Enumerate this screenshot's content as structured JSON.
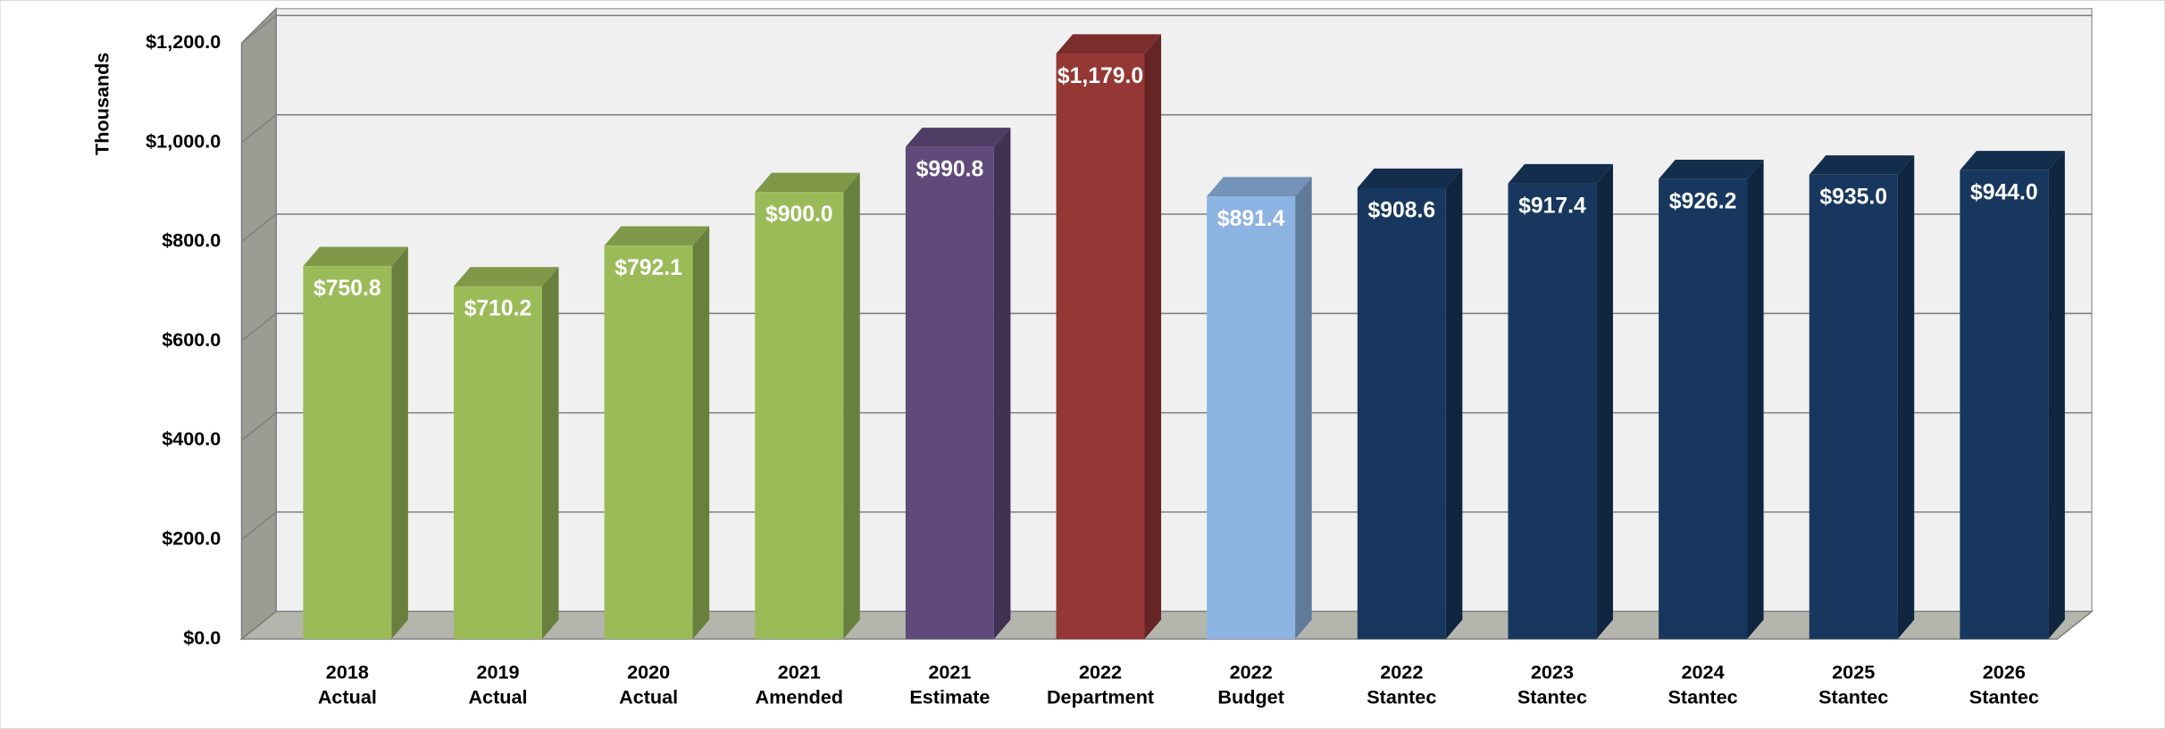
{
  "chart_data": {
    "type": "bar3d",
    "y_label": "Thousands",
    "categories": [
      [
        "2018",
        "Actual"
      ],
      [
        "2019",
        "Actual"
      ],
      [
        "2020",
        "Actual"
      ],
      [
        "2021",
        "Amended"
      ],
      [
        "2021",
        "Estimate"
      ],
      [
        "2022",
        "Department"
      ],
      [
        "2022",
        "Budget"
      ],
      [
        "2022",
        "Stantec"
      ],
      [
        "2023",
        "Stantec"
      ],
      [
        "2024",
        "Stantec"
      ],
      [
        "2025",
        "Stantec"
      ],
      [
        "2026",
        "Stantec"
      ]
    ],
    "values": [
      750.8,
      710.2,
      792.1,
      900.0,
      990.8,
      1179.0,
      891.4,
      908.6,
      917.4,
      926.2,
      935.0,
      944.0
    ],
    "value_labels": [
      "$750.8",
      "$710.2",
      "$792.1",
      "$900.0",
      "$990.8",
      "$1,179.0",
      "$891.4",
      "$908.6",
      "$917.4",
      "$926.2",
      "$935.0",
      "$944.0"
    ],
    "colors": [
      "#9bbb59",
      "#9bbb59",
      "#9bbb59",
      "#9bbb59",
      "#604a7b",
      "#953735",
      "#8db3e2",
      "#17375e",
      "#17375e",
      "#17375e",
      "#17375e",
      "#17375e"
    ],
    "ylim": [
      0,
      1200
    ],
    "yticks": [
      {
        "value": 0,
        "label": "$0.0"
      },
      {
        "value": 200,
        "label": "$200.0"
      },
      {
        "value": 400,
        "label": "$400.0"
      },
      {
        "value": 600,
        "label": "$600.0"
      },
      {
        "value": 800,
        "label": "$800.0"
      },
      {
        "value": 1000,
        "label": "$1,000.0"
      },
      {
        "value": 1200,
        "label": "$1,200.0"
      }
    ],
    "grid": true
  }
}
